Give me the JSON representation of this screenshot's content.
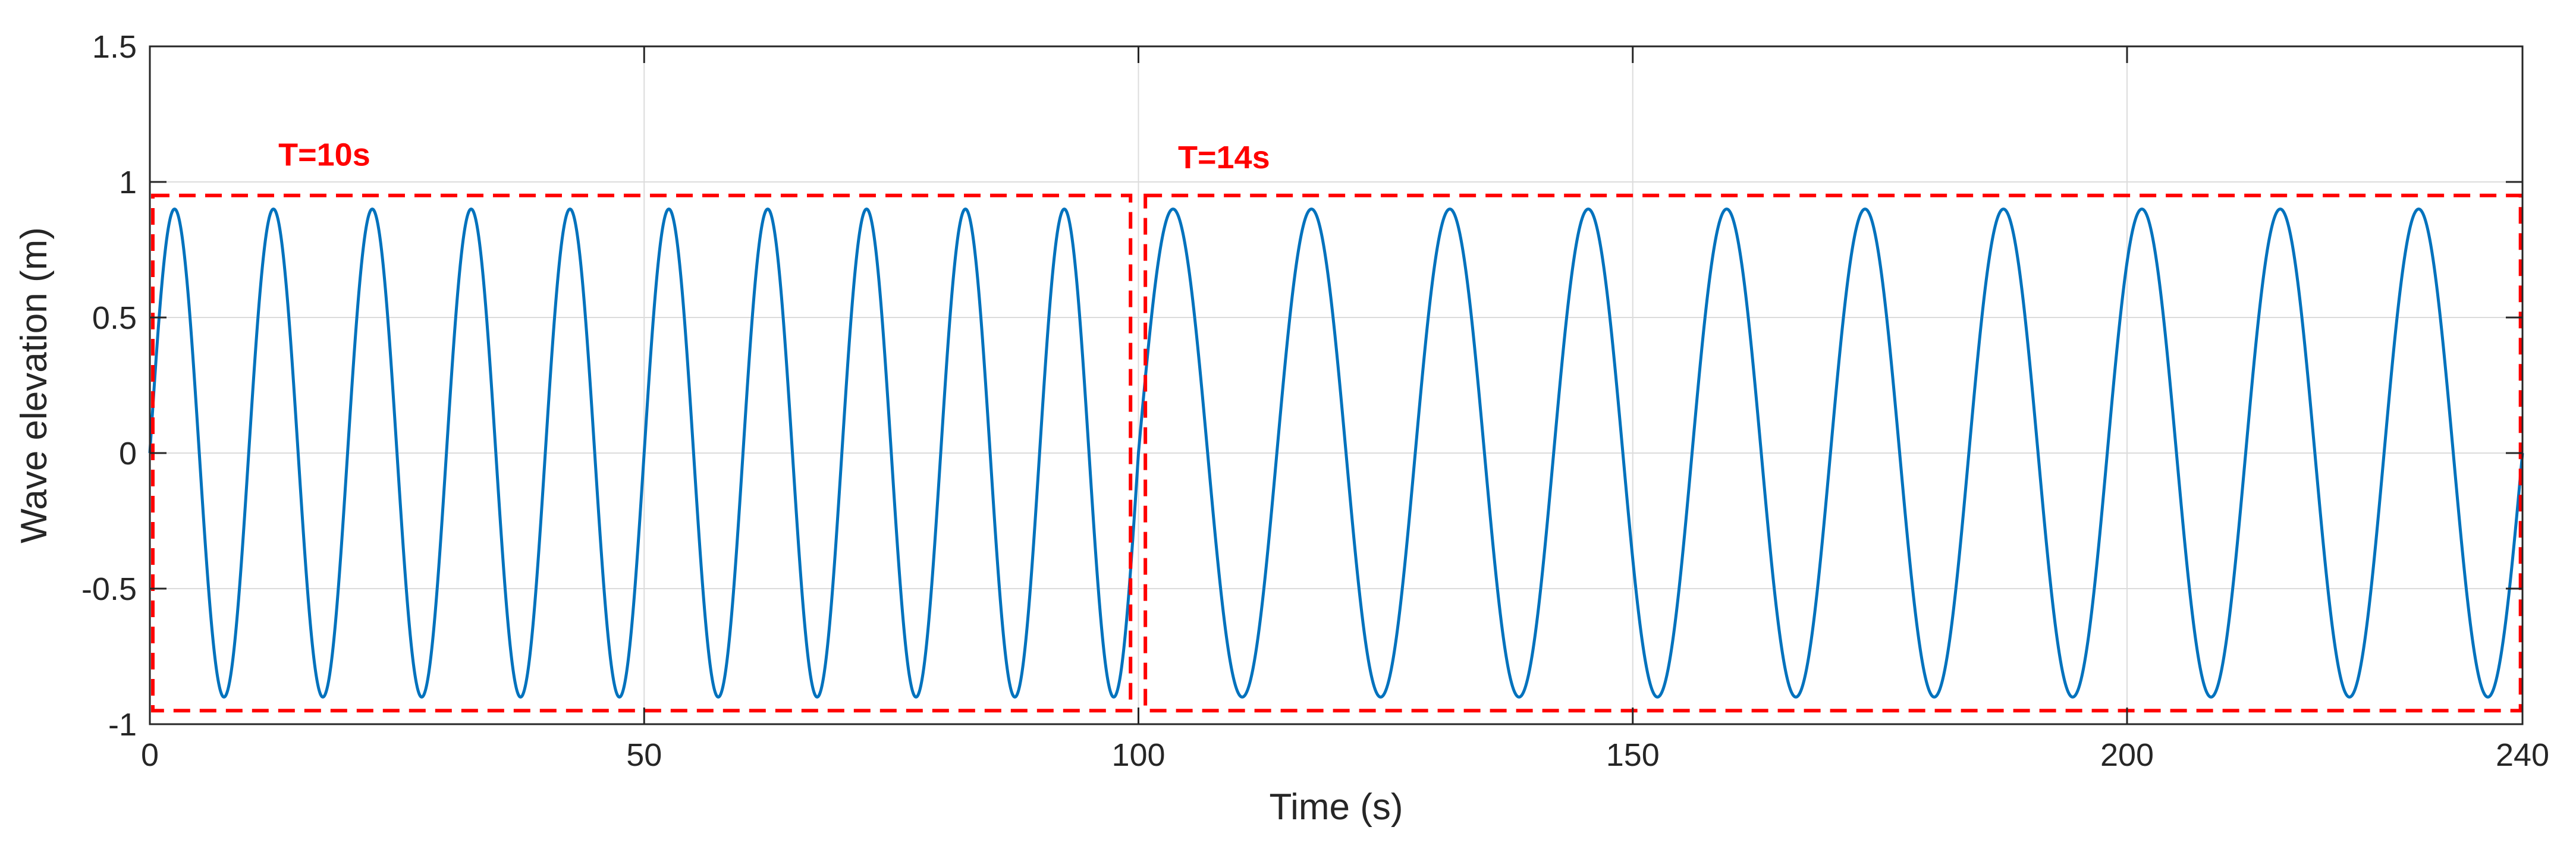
{
  "chart_data": {
    "type": "line",
    "title": "",
    "xlabel": "Time (s)",
    "ylabel": "Wave elevation (m)",
    "xlim": [
      0,
      240
    ],
    "ylim": [
      -1,
      1.5
    ],
    "xticks": [
      0,
      50,
      100,
      150,
      200,
      240
    ],
    "xtick_labels": [
      "0",
      "50",
      "100",
      "150",
      "200",
      "240"
    ],
    "yticks": [
      -1,
      -0.5,
      0,
      0.5,
      1,
      1.5
    ],
    "ytick_labels": [
      "-1",
      "-0.5",
      "0",
      "0.5",
      "1",
      "1.5"
    ],
    "grid": true,
    "series": [
      {
        "color": "#0072BD",
        "segments": [
          {
            "t_start": 0,
            "t_end": 100,
            "amplitude": 0.9,
            "period": 10
          },
          {
            "t_start": 100,
            "t_end": 240,
            "amplitude": 0.9,
            "period": 14
          }
        ]
      }
    ],
    "annotations": [
      {
        "text": "T=10s",
        "color": "#ff0000",
        "x": 13,
        "y": 1.06
      },
      {
        "text": "T=14s",
        "color": "#ff0000",
        "x": 104,
        "y": 1.05
      }
    ],
    "highlight_boxes": [
      {
        "x0": 0.3,
        "x1": 99.2,
        "y0": -0.95,
        "y1": 0.95,
        "color": "#ff0000",
        "style": "dashed"
      },
      {
        "x0": 100.7,
        "x1": 239.8,
        "y0": -0.95,
        "y1": 0.95,
        "color": "#ff0000",
        "style": "dashed"
      }
    ]
  }
}
